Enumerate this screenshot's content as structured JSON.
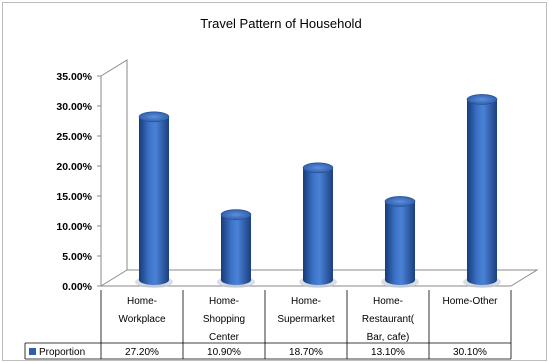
{
  "chart_data": {
    "type": "bar",
    "title": "Travel Pattern of Household",
    "categories": [
      [
        "Home-",
        "Workplace"
      ],
      [
        "Home-",
        "Shopping",
        "Center"
      ],
      [
        "Home-",
        "Supermarket"
      ],
      [
        "Home-",
        "Restaurant(",
        "Bar, cafe)"
      ],
      [
        "Home-Other"
      ]
    ],
    "series": [
      {
        "name": "Proportion",
        "values": [
          27.2,
          10.9,
          18.7,
          13.1,
          30.1
        ],
        "value_labels": [
          "27.20%",
          "10.90%",
          "18.70%",
          "13.10%",
          "30.10%"
        ],
        "color": "#2e5fae"
      }
    ],
    "y_tick_labels": [
      "0.00%",
      "5.00%",
      "10.00%",
      "15.00%",
      "20.00%",
      "25.00%",
      "30.00%",
      "35.00%"
    ],
    "ylim": [
      0,
      35
    ],
    "bar_style": "3d-cylinder",
    "grid": false,
    "legend": "data-table"
  }
}
